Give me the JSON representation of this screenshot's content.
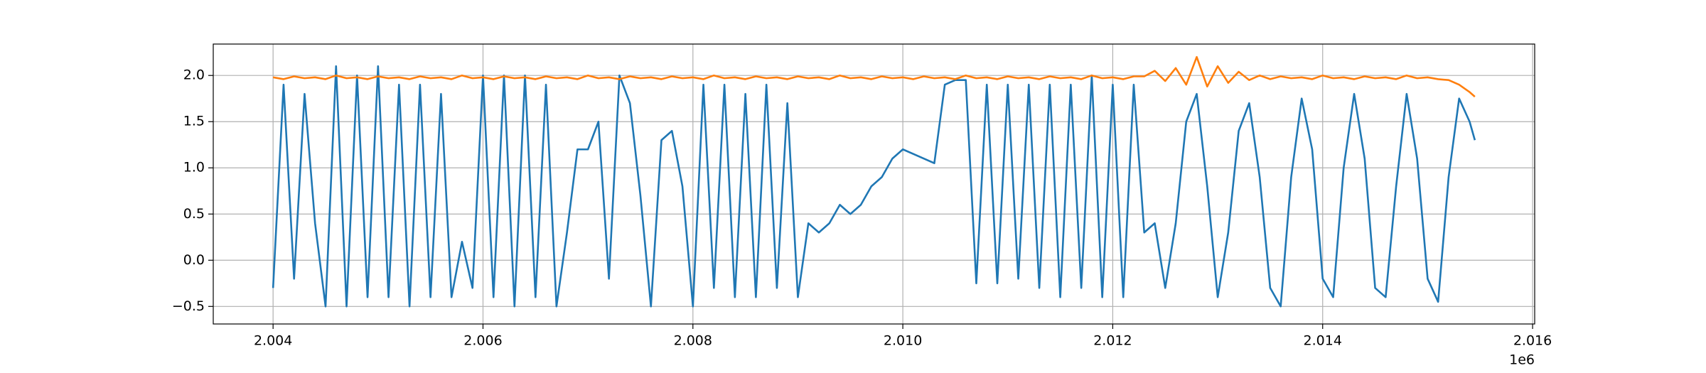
{
  "chart_data": {
    "type": "line",
    "x_offset_label": "1e6",
    "x": [
      2.004,
      2.0041,
      2.0042,
      2.0043,
      2.0044,
      2.0045,
      2.0046,
      2.0047,
      2.0048,
      2.0049,
      2.005,
      2.0051,
      2.0052,
      2.0053,
      2.0054,
      2.0055,
      2.0056,
      2.0057,
      2.0058,
      2.0059,
      2.006,
      2.0061,
      2.0062,
      2.0063,
      2.0064,
      2.0065,
      2.0066,
      2.0067,
      2.0068,
      2.0069,
      2.007,
      2.0071,
      2.0072,
      2.0073,
      2.0074,
      2.0075,
      2.0076,
      2.0077,
      2.0078,
      2.0079,
      2.008,
      2.0081,
      2.0082,
      2.0083,
      2.0084,
      2.0085,
      2.0086,
      2.0087,
      2.0088,
      2.0089,
      2.009,
      2.0091,
      2.0092,
      2.0093,
      2.0094,
      2.0095,
      2.0096,
      2.0097,
      2.0098,
      2.0099,
      2.01,
      2.0101,
      2.0102,
      2.0103,
      2.0104,
      2.0105,
      2.0106,
      2.0107,
      2.0108,
      2.0109,
      2.011,
      2.0111,
      2.0112,
      2.0113,
      2.0114,
      2.0115,
      2.0116,
      2.0117,
      2.0118,
      2.0119,
      2.012,
      2.0121,
      2.0122,
      2.0123,
      2.0124,
      2.0125,
      2.0126,
      2.0127,
      2.0128,
      2.0129,
      2.013,
      2.0131,
      2.0132,
      2.0133,
      2.0134,
      2.0135,
      2.0136,
      2.0137,
      2.0138,
      2.0139,
      2.014,
      2.0141,
      2.0142,
      2.0143,
      2.0144,
      2.0145,
      2.0146,
      2.0147,
      2.0148,
      2.0149,
      2.015,
      2.0151,
      2.0152,
      2.0153,
      2.0154,
      2.01545
    ],
    "series": [
      {
        "color": "#1f77b4",
        "values": [
          -0.3,
          1.9,
          -0.2,
          1.8,
          0.4,
          -0.5,
          2.1,
          -0.5,
          2.0,
          -0.4,
          2.1,
          -0.4,
          1.9,
          -0.5,
          1.9,
          -0.4,
          1.8,
          -0.4,
          0.2,
          -0.3,
          2.0,
          -0.4,
          2.0,
          -0.5,
          2.0,
          -0.4,
          1.9,
          -0.5,
          0.3,
          1.2,
          1.2,
          1.5,
          -0.2,
          2.0,
          1.7,
          0.7,
          -0.5,
          1.3,
          1.4,
          0.8,
          -0.5,
          1.9,
          -0.3,
          1.9,
          -0.4,
          1.8,
          -0.4,
          1.9,
          -0.3,
          1.7,
          -0.4,
          0.4,
          0.3,
          0.4,
          0.6,
          0.5,
          0.6,
          0.8,
          0.9,
          1.1,
          1.2,
          1.15,
          1.1,
          1.05,
          1.9,
          1.95,
          1.95,
          -0.25,
          1.9,
          -0.25,
          1.9,
          -0.2,
          1.9,
          -0.3,
          1.9,
          -0.4,
          1.9,
          -0.3,
          2.0,
          -0.4,
          1.9,
          -0.4,
          1.9,
          0.3,
          0.4,
          -0.3,
          0.4,
          1.5,
          1.8,
          0.8,
          -0.4,
          0.3,
          1.4,
          1.7,
          0.9,
          -0.3,
          -0.5,
          0.9,
          1.75,
          1.2,
          -0.2,
          -0.4,
          1.0,
          1.8,
          1.1,
          -0.3,
          -0.4,
          0.8,
          1.8,
          1.1,
          -0.2,
          -0.45,
          0.9,
          1.75,
          1.5,
          1.3
        ]
      },
      {
        "color": "#ff7f0e",
        "values": [
          1.98,
          1.96,
          1.99,
          1.97,
          1.98,
          1.96,
          2.0,
          1.97,
          1.98,
          1.96,
          1.99,
          1.97,
          1.98,
          1.96,
          1.99,
          1.97,
          1.98,
          1.96,
          2.0,
          1.97,
          1.98,
          1.96,
          1.99,
          1.97,
          1.98,
          1.96,
          1.99,
          1.97,
          1.98,
          1.96,
          2.0,
          1.97,
          1.98,
          1.96,
          1.99,
          1.97,
          1.98,
          1.96,
          1.99,
          1.97,
          1.98,
          1.96,
          2.0,
          1.97,
          1.98,
          1.96,
          1.99,
          1.97,
          1.98,
          1.96,
          1.99,
          1.97,
          1.98,
          1.96,
          2.0,
          1.97,
          1.98,
          1.96,
          1.99,
          1.97,
          1.98,
          1.96,
          1.99,
          1.97,
          1.98,
          1.96,
          2.0,
          1.97,
          1.98,
          1.96,
          1.99,
          1.97,
          1.98,
          1.96,
          1.99,
          1.97,
          1.98,
          1.96,
          2.0,
          1.97,
          1.98,
          1.96,
          1.99,
          1.99,
          2.05,
          1.94,
          2.08,
          1.9,
          2.2,
          1.88,
          2.1,
          1.92,
          2.04,
          1.95,
          2.0,
          1.96,
          1.99,
          1.97,
          1.98,
          1.96,
          2.0,
          1.97,
          1.98,
          1.96,
          1.99,
          1.97,
          1.98,
          1.96,
          2.0,
          1.97,
          1.98,
          1.96,
          1.95,
          1.9,
          1.82,
          1.77
        ]
      }
    ],
    "xlim": [
      2.00343,
      2.01602
    ],
    "ylim": [
      -0.69,
      2.34
    ],
    "xticks": [
      2.004,
      2.006,
      2.008,
      {
        "value": 2.01,
        "label": "2.010"
      },
      2.012,
      2.014,
      2.016
    ],
    "yticks": [
      {
        "value": -0.5,
        "label": "−0.5"
      },
      {
        "value": 0,
        "label": "0.0"
      },
      0.5,
      {
        "value": 1,
        "label": "1.0"
      },
      1.5,
      {
        "value": 2,
        "label": "2.0"
      }
    ],
    "grid": true
  }
}
